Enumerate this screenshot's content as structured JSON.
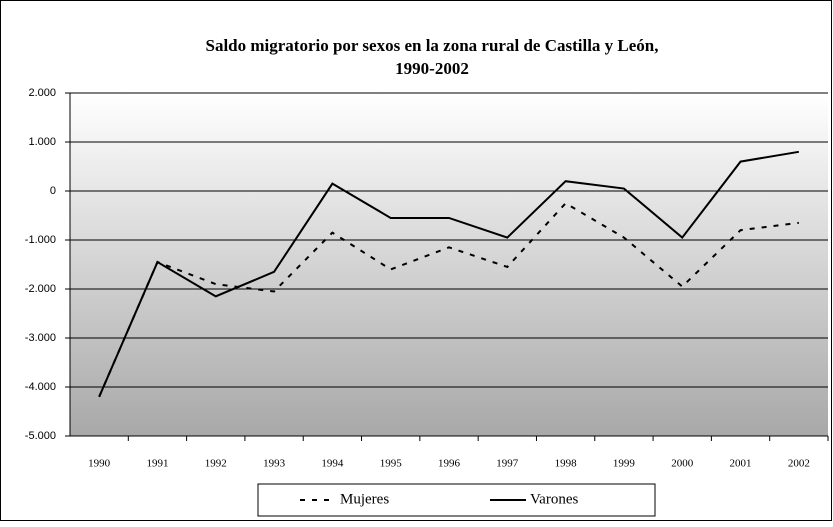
{
  "chart_data": {
    "type": "line",
    "title": [
      "Saldo migratorio por sexos en la zona rural de Castilla y León,",
      "1990-2002"
    ],
    "categories": [
      "1990",
      "1991",
      "1992",
      "1993",
      "1994",
      "1995",
      "1996",
      "1997",
      "1998",
      "1999",
      "2000",
      "2001",
      "2002"
    ],
    "series": [
      {
        "name": "Mujeres",
        "color": "#000000",
        "dashed": true,
        "values": [
          -4200,
          -1450,
          -1900,
          -2050,
          -850,
          -1600,
          -1150,
          -1550,
          -250,
          -950,
          -1950,
          -800,
          -650
        ]
      },
      {
        "name": "Varones",
        "color": "#000000",
        "dashed": false,
        "values": [
          -4200,
          -1450,
          -2150,
          -1650,
          150,
          -550,
          -550,
          -950,
          200,
          50,
          -950,
          600,
          800
        ]
      }
    ],
    "ylim": [
      -5000,
      2000
    ],
    "yticks": [
      {
        "value": -5000,
        "label": "-5.000"
      },
      {
        "value": -4000,
        "label": "-4.000"
      },
      {
        "value": -3000,
        "label": "-3.000"
      },
      {
        "value": -2000,
        "label": "-2.000"
      },
      {
        "value": -1000,
        "label": "-1.000"
      },
      0,
      {
        "value": 1000,
        "label": "1.000"
      },
      {
        "value": 2000,
        "label": "2.000"
      }
    ],
    "grid": true,
    "legend": "bottom"
  }
}
